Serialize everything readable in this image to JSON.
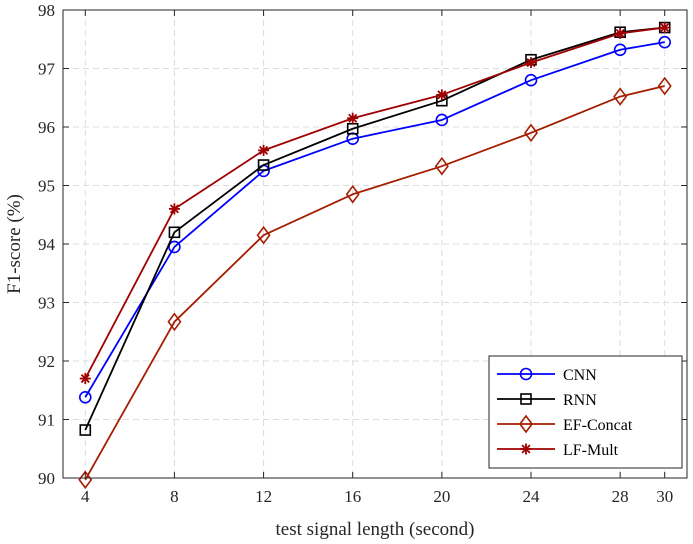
{
  "chart_data": {
    "type": "line",
    "xlabel": "test signal length (second)",
    "ylabel": "F1-score (%)",
    "x": [
      4,
      8,
      12,
      16,
      20,
      24,
      28,
      30
    ],
    "xlim": [
      3,
      31
    ],
    "ylim": [
      90,
      98
    ],
    "xticks": [
      4,
      8,
      12,
      16,
      20,
      24,
      28,
      30
    ],
    "yticks": [
      90,
      91,
      92,
      93,
      94,
      95,
      96,
      97,
      98
    ],
    "grid": true,
    "legend_position": "bottom-right",
    "series": [
      {
        "name": "CNN",
        "color": "#0000ff",
        "marker": "circle",
        "values": [
          91.38,
          93.95,
          95.25,
          95.8,
          96.12,
          96.8,
          97.32,
          97.45
        ]
      },
      {
        "name": "RNN",
        "color": "#000000",
        "marker": "square",
        "values": [
          90.82,
          94.2,
          95.35,
          95.97,
          96.45,
          97.15,
          97.62,
          97.7
        ]
      },
      {
        "name": "EF-Concat",
        "color": "#a51d00",
        "marker": "diamond",
        "values": [
          89.97,
          92.67,
          94.15,
          94.85,
          95.33,
          95.9,
          96.52,
          96.7
        ]
      },
      {
        "name": "LF-Mult",
        "color": "#a00000",
        "marker": "asterisk",
        "values": [
          91.7,
          94.6,
          95.6,
          96.15,
          96.55,
          97.1,
          97.6,
          97.7
        ]
      }
    ]
  }
}
